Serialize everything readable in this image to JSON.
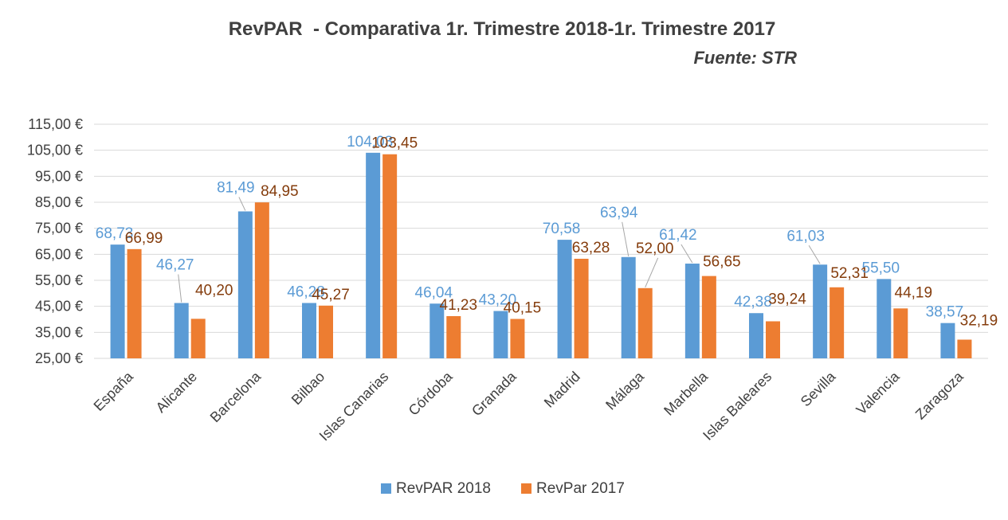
{
  "chart_data": {
    "type": "bar",
    "title": "RevPAR  - Comparativa 1r. Trimestre 2018-1r. Trimestre 2017",
    "subtitle": "Fuente: STR",
    "xlabel": "",
    "ylabel": "",
    "ylim": [
      25,
      115
    ],
    "y_ticks": [
      "25,00 €",
      "35,00 €",
      "45,00 €",
      "55,00 €",
      "65,00 €",
      "75,00 €",
      "85,00 €",
      "95,00 €",
      "105,00 €",
      "115,00 €"
    ],
    "y_tick_values": [
      25,
      35,
      45,
      55,
      65,
      75,
      85,
      95,
      105,
      115
    ],
    "grid": true,
    "legend_position": "bottom",
    "categories": [
      "España",
      "Alicante",
      "Barcelona",
      "Bilbao",
      "Islas Canarias",
      "Córdoba",
      "Granada",
      "Madrid",
      "Málaga",
      "Marbella",
      "Islas Baleares",
      "Sevilla",
      "Valencia",
      "Zaragoza"
    ],
    "series": [
      {
        "name": "RevPAR 2018",
        "color": "#5b9bd5",
        "label_color": "#5b9bd5",
        "values": [
          68.73,
          46.27,
          81.49,
          46.28,
          104.03,
          46.04,
          43.2,
          70.58,
          63.94,
          61.42,
          42.38,
          61.03,
          55.5,
          38.57
        ],
        "labels": [
          "68,73",
          "46,27",
          "81,49",
          "46,28",
          "104,03",
          "46,04",
          "43,20",
          "70,58",
          "63,94",
          "61,42",
          "42,38",
          "61,03",
          "55,50",
          "38,57"
        ]
      },
      {
        "name": "RevPar 2017",
        "color": "#ed7d31",
        "label_color": "#843c0c",
        "values": [
          66.99,
          40.2,
          84.95,
          45.27,
          103.45,
          41.23,
          40.15,
          63.28,
          52.0,
          56.65,
          39.24,
          52.31,
          44.19,
          32.19
        ],
        "labels": [
          "66,99",
          "40,20",
          "84,95",
          "45,27",
          "103,45",
          "41,23",
          "40,15",
          "63,28",
          "52,00",
          "56,65",
          "39,24",
          "52,31",
          "44,19",
          "32,19"
        ]
      }
    ]
  }
}
